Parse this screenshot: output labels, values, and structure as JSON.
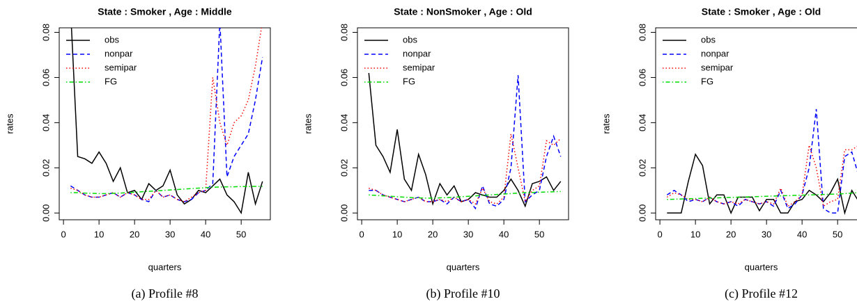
{
  "chart_data": [
    {
      "type": "line",
      "title": "State : Smoker , Age : Middle",
      "caption": "(a) Profile #8",
      "xlabel": "quarters",
      "ylabel": "rates",
      "x": [
        2,
        4,
        6,
        8,
        10,
        12,
        14,
        16,
        18,
        20,
        22,
        24,
        26,
        28,
        30,
        32,
        34,
        36,
        38,
        40,
        42,
        44,
        46,
        48,
        50,
        52,
        54,
        56
      ],
      "series": [
        {
          "name": "obs",
          "color": "#000000",
          "dash": "solid",
          "values": [
            0.09,
            0.025,
            0.024,
            0.022,
            0.027,
            0.022,
            0.014,
            0.02,
            0.009,
            0.01,
            0.006,
            0.013,
            0.01,
            0.012,
            0.019,
            0.008,
            0.004,
            0.006,
            0.01,
            0.009,
            0.012,
            0.015,
            0.008,
            0.005,
            0.0,
            0.018,
            0.004,
            0.014
          ]
        },
        {
          "name": "nonpar",
          "color": "#0000ff",
          "dash": "dashed",
          "values": [
            0.012,
            0.01,
            0.008,
            0.007,
            0.007,
            0.008,
            0.009,
            0.007,
            0.009,
            0.008,
            0.006,
            0.005,
            0.01,
            0.007,
            0.008,
            0.006,
            0.005,
            0.006,
            0.009,
            0.01,
            0.013,
            0.085,
            0.016,
            0.025,
            0.03,
            0.035,
            0.05,
            0.069
          ]
        },
        {
          "name": "semipar",
          "color": "#ff0000",
          "dash": "dotted",
          "values": [
            0.011,
            0.01,
            0.008,
            0.007,
            0.007,
            0.008,
            0.009,
            0.007,
            0.009,
            0.008,
            0.006,
            0.006,
            0.01,
            0.007,
            0.008,
            0.006,
            0.005,
            0.007,
            0.009,
            0.01,
            0.06,
            0.04,
            0.03,
            0.04,
            0.043,
            0.05,
            0.065,
            0.085
          ]
        },
        {
          "name": "FG",
          "color": "#00dd00",
          "dash": "dotdash",
          "values": [
            0.009,
            0.009,
            0.0088,
            0.0087,
            0.0086,
            0.0086,
            0.0087,
            0.0088,
            0.009,
            0.0092,
            0.0094,
            0.0096,
            0.0098,
            0.01,
            0.0102,
            0.0104,
            0.0106,
            0.0108,
            0.011,
            0.0112,
            0.0114,
            0.0115,
            0.0116,
            0.0116,
            0.0117,
            0.0117,
            0.0118,
            0.0118
          ]
        }
      ],
      "xlim": [
        -1.2,
        58.2
      ],
      "xticks": [
        0,
        10,
        20,
        30,
        40,
        50
      ],
      "ylim": [
        -0.003,
        0.082
      ],
      "yticks": [
        {
          "value": 0,
          "label": "0.00"
        },
        {
          "value": 0.02,
          "label": "0.02"
        },
        {
          "value": 0.04,
          "label": "0.04"
        },
        {
          "value": 0.06,
          "label": "0.06"
        },
        {
          "value": 0.08,
          "label": "0.08"
        }
      ],
      "legend": "top-left",
      "grid": false
    },
    {
      "type": "line",
      "title": "State : NonSmoker , Age : Old",
      "caption": "(b) Profile #10",
      "xlabel": "quarters",
      "ylabel": "rates",
      "x": [
        2,
        4,
        6,
        8,
        10,
        12,
        14,
        16,
        18,
        20,
        22,
        24,
        26,
        28,
        30,
        32,
        34,
        36,
        38,
        40,
        42,
        44,
        46,
        48,
        50,
        52,
        54,
        56
      ],
      "series": [
        {
          "name": "obs",
          "color": "#000000",
          "dash": "solid",
          "values": [
            0.062,
            0.03,
            0.025,
            0.018,
            0.037,
            0.015,
            0.01,
            0.026,
            0.017,
            0.004,
            0.013,
            0.008,
            0.012,
            0.005,
            0.006,
            0.009,
            0.008,
            0.007,
            0.007,
            0.01,
            0.015,
            0.01,
            0.003,
            0.013,
            0.014,
            0.016,
            0.01,
            0.014
          ]
        },
        {
          "name": "nonpar",
          "color": "#0000ff",
          "dash": "dashed",
          "values": [
            0.01,
            0.01,
            0.008,
            0.007,
            0.006,
            0.005,
            0.006,
            0.007,
            0.005,
            0.005,
            0.006,
            0.004,
            0.007,
            0.005,
            0.006,
            0.002,
            0.012,
            0.004,
            0.003,
            0.006,
            0.02,
            0.061,
            0.005,
            0.008,
            0.01,
            0.025,
            0.034,
            0.025
          ]
        },
        {
          "name": "semipar",
          "color": "#ff0000",
          "dash": "dotted",
          "values": [
            0.011,
            0.01,
            0.008,
            0.007,
            0.006,
            0.005,
            0.006,
            0.007,
            0.005,
            0.005,
            0.006,
            0.005,
            0.007,
            0.005,
            0.006,
            0.004,
            0.011,
            0.005,
            0.004,
            0.007,
            0.035,
            0.02,
            0.005,
            0.01,
            0.012,
            0.032,
            0.03,
            0.033
          ]
        },
        {
          "name": "FG",
          "color": "#00dd00",
          "dash": "dotdash",
          "values": [
            0.008,
            0.0078,
            0.0076,
            0.0074,
            0.0072,
            0.007,
            0.0068,
            0.0067,
            0.0066,
            0.0066,
            0.0067,
            0.0068,
            0.007,
            0.0072,
            0.0074,
            0.0076,
            0.0078,
            0.008,
            0.0082,
            0.0084,
            0.0086,
            0.0088,
            0.009,
            0.0091,
            0.0092,
            0.0093,
            0.0094,
            0.0095
          ]
        }
      ],
      "xlim": [
        -1.2,
        58.2
      ],
      "xticks": [
        0,
        10,
        20,
        30,
        40,
        50
      ],
      "ylim": [
        -0.003,
        0.082
      ],
      "yticks": [
        {
          "value": 0,
          "label": "0.00"
        },
        {
          "value": 0.02,
          "label": "0.02"
        },
        {
          "value": 0.04,
          "label": "0.04"
        },
        {
          "value": 0.06,
          "label": "0.06"
        },
        {
          "value": 0.08,
          "label": "0.08"
        }
      ],
      "legend": "top-left",
      "grid": false
    },
    {
      "type": "line",
      "title": "State : Smoker , Age : Old",
      "caption": "(c) Profile #12",
      "xlabel": "quarters",
      "ylabel": "rates",
      "x": [
        2,
        4,
        6,
        8,
        10,
        12,
        14,
        16,
        18,
        20,
        22,
        24,
        26,
        28,
        30,
        32,
        34,
        36,
        38,
        40,
        42,
        44,
        46,
        48,
        50,
        52,
        54,
        56
      ],
      "series": [
        {
          "name": "obs",
          "color": "#000000",
          "dash": "solid",
          "values": [
            0,
            0,
            0,
            0.014,
            0.026,
            0.021,
            0.004,
            0.008,
            0.008,
            0.0,
            0.007,
            0.007,
            0.007,
            0.001,
            0.006,
            0.006,
            0.0,
            0.0,
            0.005,
            0.006,
            0.01,
            0.008,
            0.005,
            0.009,
            0.015,
            0.0,
            0.01,
            0.005
          ]
        },
        {
          "name": "nonpar",
          "color": "#0000ff",
          "dash": "dashed",
          "values": [
            0.008,
            0.01,
            0.008,
            0.005,
            0.006,
            0.005,
            0.007,
            0.005,
            0.004,
            0.005,
            0.003,
            0.006,
            0.005,
            0.004,
            0.005,
            0.003,
            0.01,
            0.002,
            0.004,
            0.008,
            0.02,
            0.046,
            0.002,
            0.0,
            0.0,
            0.025,
            0.027,
            0.016
          ]
        },
        {
          "name": "semipar",
          "color": "#ff0000",
          "dash": "dotted",
          "values": [
            0.007,
            0.009,
            0.008,
            0.006,
            0.006,
            0.005,
            0.007,
            0.005,
            0.004,
            0.005,
            0.004,
            0.006,
            0.005,
            0.004,
            0.005,
            0.004,
            0.011,
            0.003,
            0.005,
            0.008,
            0.03,
            0.02,
            0.003,
            0.005,
            0.006,
            0.028,
            0.028,
            0.03
          ]
        },
        {
          "name": "FG",
          "color": "#00dd00",
          "dash": "dotdash",
          "values": [
            0.006,
            0.0061,
            0.0062,
            0.0063,
            0.0064,
            0.0065,
            0.0066,
            0.0067,
            0.0068,
            0.0069,
            0.007,
            0.0071,
            0.0072,
            0.0073,
            0.0074,
            0.0075,
            0.0076,
            0.0077,
            0.0078,
            0.0079,
            0.008,
            0.0081,
            0.0082,
            0.0083,
            0.0084,
            0.0086,
            0.0088,
            0.009
          ]
        }
      ],
      "xlim": [
        -1.2,
        58.2
      ],
      "xticks": [
        0,
        10,
        20,
        30,
        40,
        50
      ],
      "ylim": [
        -0.003,
        0.082
      ],
      "yticks": [
        {
          "value": 0,
          "label": "0.00"
        },
        {
          "value": 0.02,
          "label": "0.02"
        },
        {
          "value": 0.04,
          "label": "0.04"
        },
        {
          "value": 0.06,
          "label": "0.06"
        },
        {
          "value": 0.08,
          "label": "0.08"
        }
      ],
      "legend": "top-left",
      "grid": false
    }
  ]
}
